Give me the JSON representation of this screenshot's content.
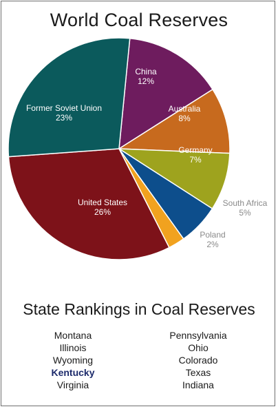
{
  "chart_data": {
    "type": "pie",
    "title": "World Coal Reserves",
    "slices": [
      {
        "label": "China",
        "value": 12,
        "pct_label": "12%",
        "color": "#6e1c5e",
        "label_color": "#ffffff"
      },
      {
        "label": "Australia",
        "value": 8,
        "pct_label": "8%",
        "color": "#c76a1e",
        "label_color": "#ffffff"
      },
      {
        "label": "Germany",
        "value": 7,
        "pct_label": "7%",
        "color": "#9ea31e",
        "label_color": "#ffffff"
      },
      {
        "label": "South Africa",
        "value": 5,
        "pct_label": "5%",
        "color": "#0d4e8c",
        "label_color": "#8a8a8a"
      },
      {
        "label": "Poland",
        "value": 2,
        "pct_label": "2%",
        "color": "#f1a21f",
        "label_color": "#8a8a8a"
      },
      {
        "label": "United States",
        "value": 26,
        "pct_label": "26%",
        "color": "#7d1219",
        "label_color": "#ffffff"
      },
      {
        "label": "Former Soviet Union",
        "value": 23,
        "pct_label": "23%",
        "color": "#0b5a5c",
        "label_color": "#ffffff"
      }
    ],
    "start_angle_deg": 5.6,
    "slice_border_color": "#ffffff"
  },
  "rankings": {
    "title": "State Rankings in Coal Reserves",
    "left": [
      "Montana",
      "Illinois",
      "Wyoming",
      "Kentucky",
      "Virginia"
    ],
    "right": [
      "Pennsylvania",
      "Ohio",
      "Colorado",
      "Texas",
      "Indiana"
    ],
    "highlighted": "Kentucky",
    "highlight_color": "#1c2a6b"
  }
}
